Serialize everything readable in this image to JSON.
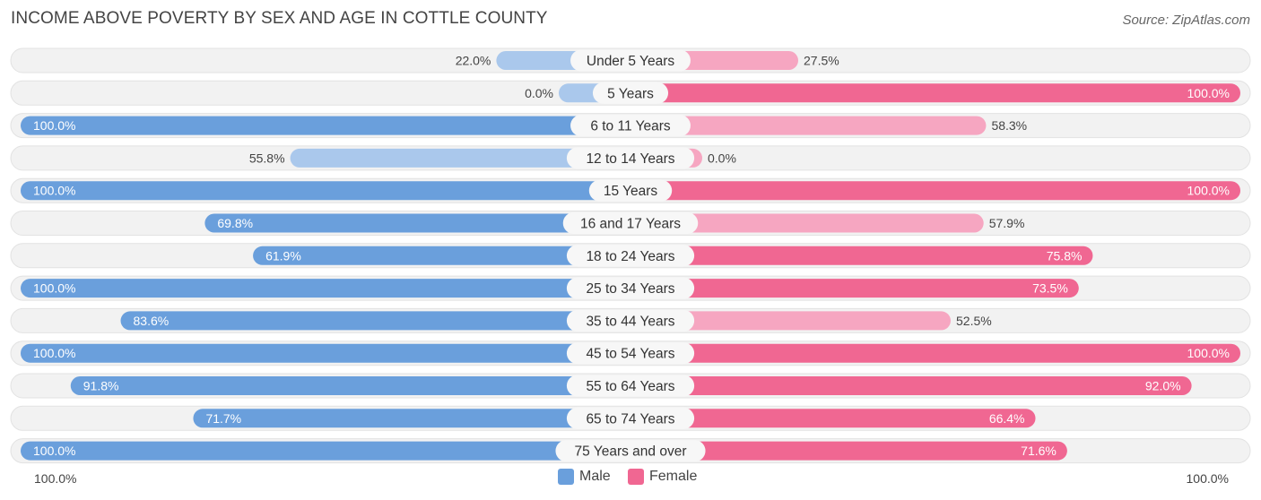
{
  "title": "INCOME ABOVE POVERTY BY SEX AND AGE IN COTTLE COUNTY",
  "source": "Source: ZipAtlas.com",
  "legend": {
    "male": "Male",
    "female": "Female"
  },
  "axis": {
    "left": "100.0%",
    "right": "100.0%"
  },
  "colors": {
    "male_strong": "#6a9fdc",
    "male_light": "#aac8ec",
    "female_strong": "#f06792",
    "female_light": "#f6a6c1",
    "row_bg": "#f2f2f2",
    "row_border": "#e2e2e2"
  },
  "chart_data": {
    "type": "bar",
    "orientation": "horizontal-diverging",
    "title": "INCOME ABOVE POVERTY BY SEX AND AGE IN COTTLE COUNTY",
    "xlim": [
      0,
      100
    ],
    "unit": "%",
    "categories": [
      "Under 5 Years",
      "5 Years",
      "6 to 11 Years",
      "12 to 14 Years",
      "15 Years",
      "16 and 17 Years",
      "18 to 24 Years",
      "25 to 34 Years",
      "35 to 44 Years",
      "45 to 54 Years",
      "55 to 64 Years",
      "65 to 74 Years",
      "75 Years and over"
    ],
    "series": [
      {
        "name": "Male",
        "values": [
          22.0,
          0.0,
          100.0,
          55.8,
          100.0,
          69.8,
          61.9,
          100.0,
          83.6,
          100.0,
          91.8,
          71.7,
          100.0
        ],
        "labels": [
          "22.0%",
          "0.0%",
          "100.0%",
          "55.8%",
          "100.0%",
          "69.8%",
          "61.9%",
          "100.0%",
          "83.6%",
          "100.0%",
          "91.8%",
          "71.7%",
          "100.0%"
        ]
      },
      {
        "name": "Female",
        "values": [
          27.5,
          100.0,
          58.3,
          0.0,
          100.0,
          57.9,
          75.8,
          73.5,
          52.5,
          100.0,
          92.0,
          66.4,
          71.6
        ],
        "labels": [
          "27.5%",
          "100.0%",
          "58.3%",
          "0.0%",
          "100.0%",
          "57.9%",
          "75.8%",
          "73.5%",
          "52.5%",
          "100.0%",
          "92.0%",
          "66.4%",
          "71.6%"
        ]
      }
    ]
  }
}
